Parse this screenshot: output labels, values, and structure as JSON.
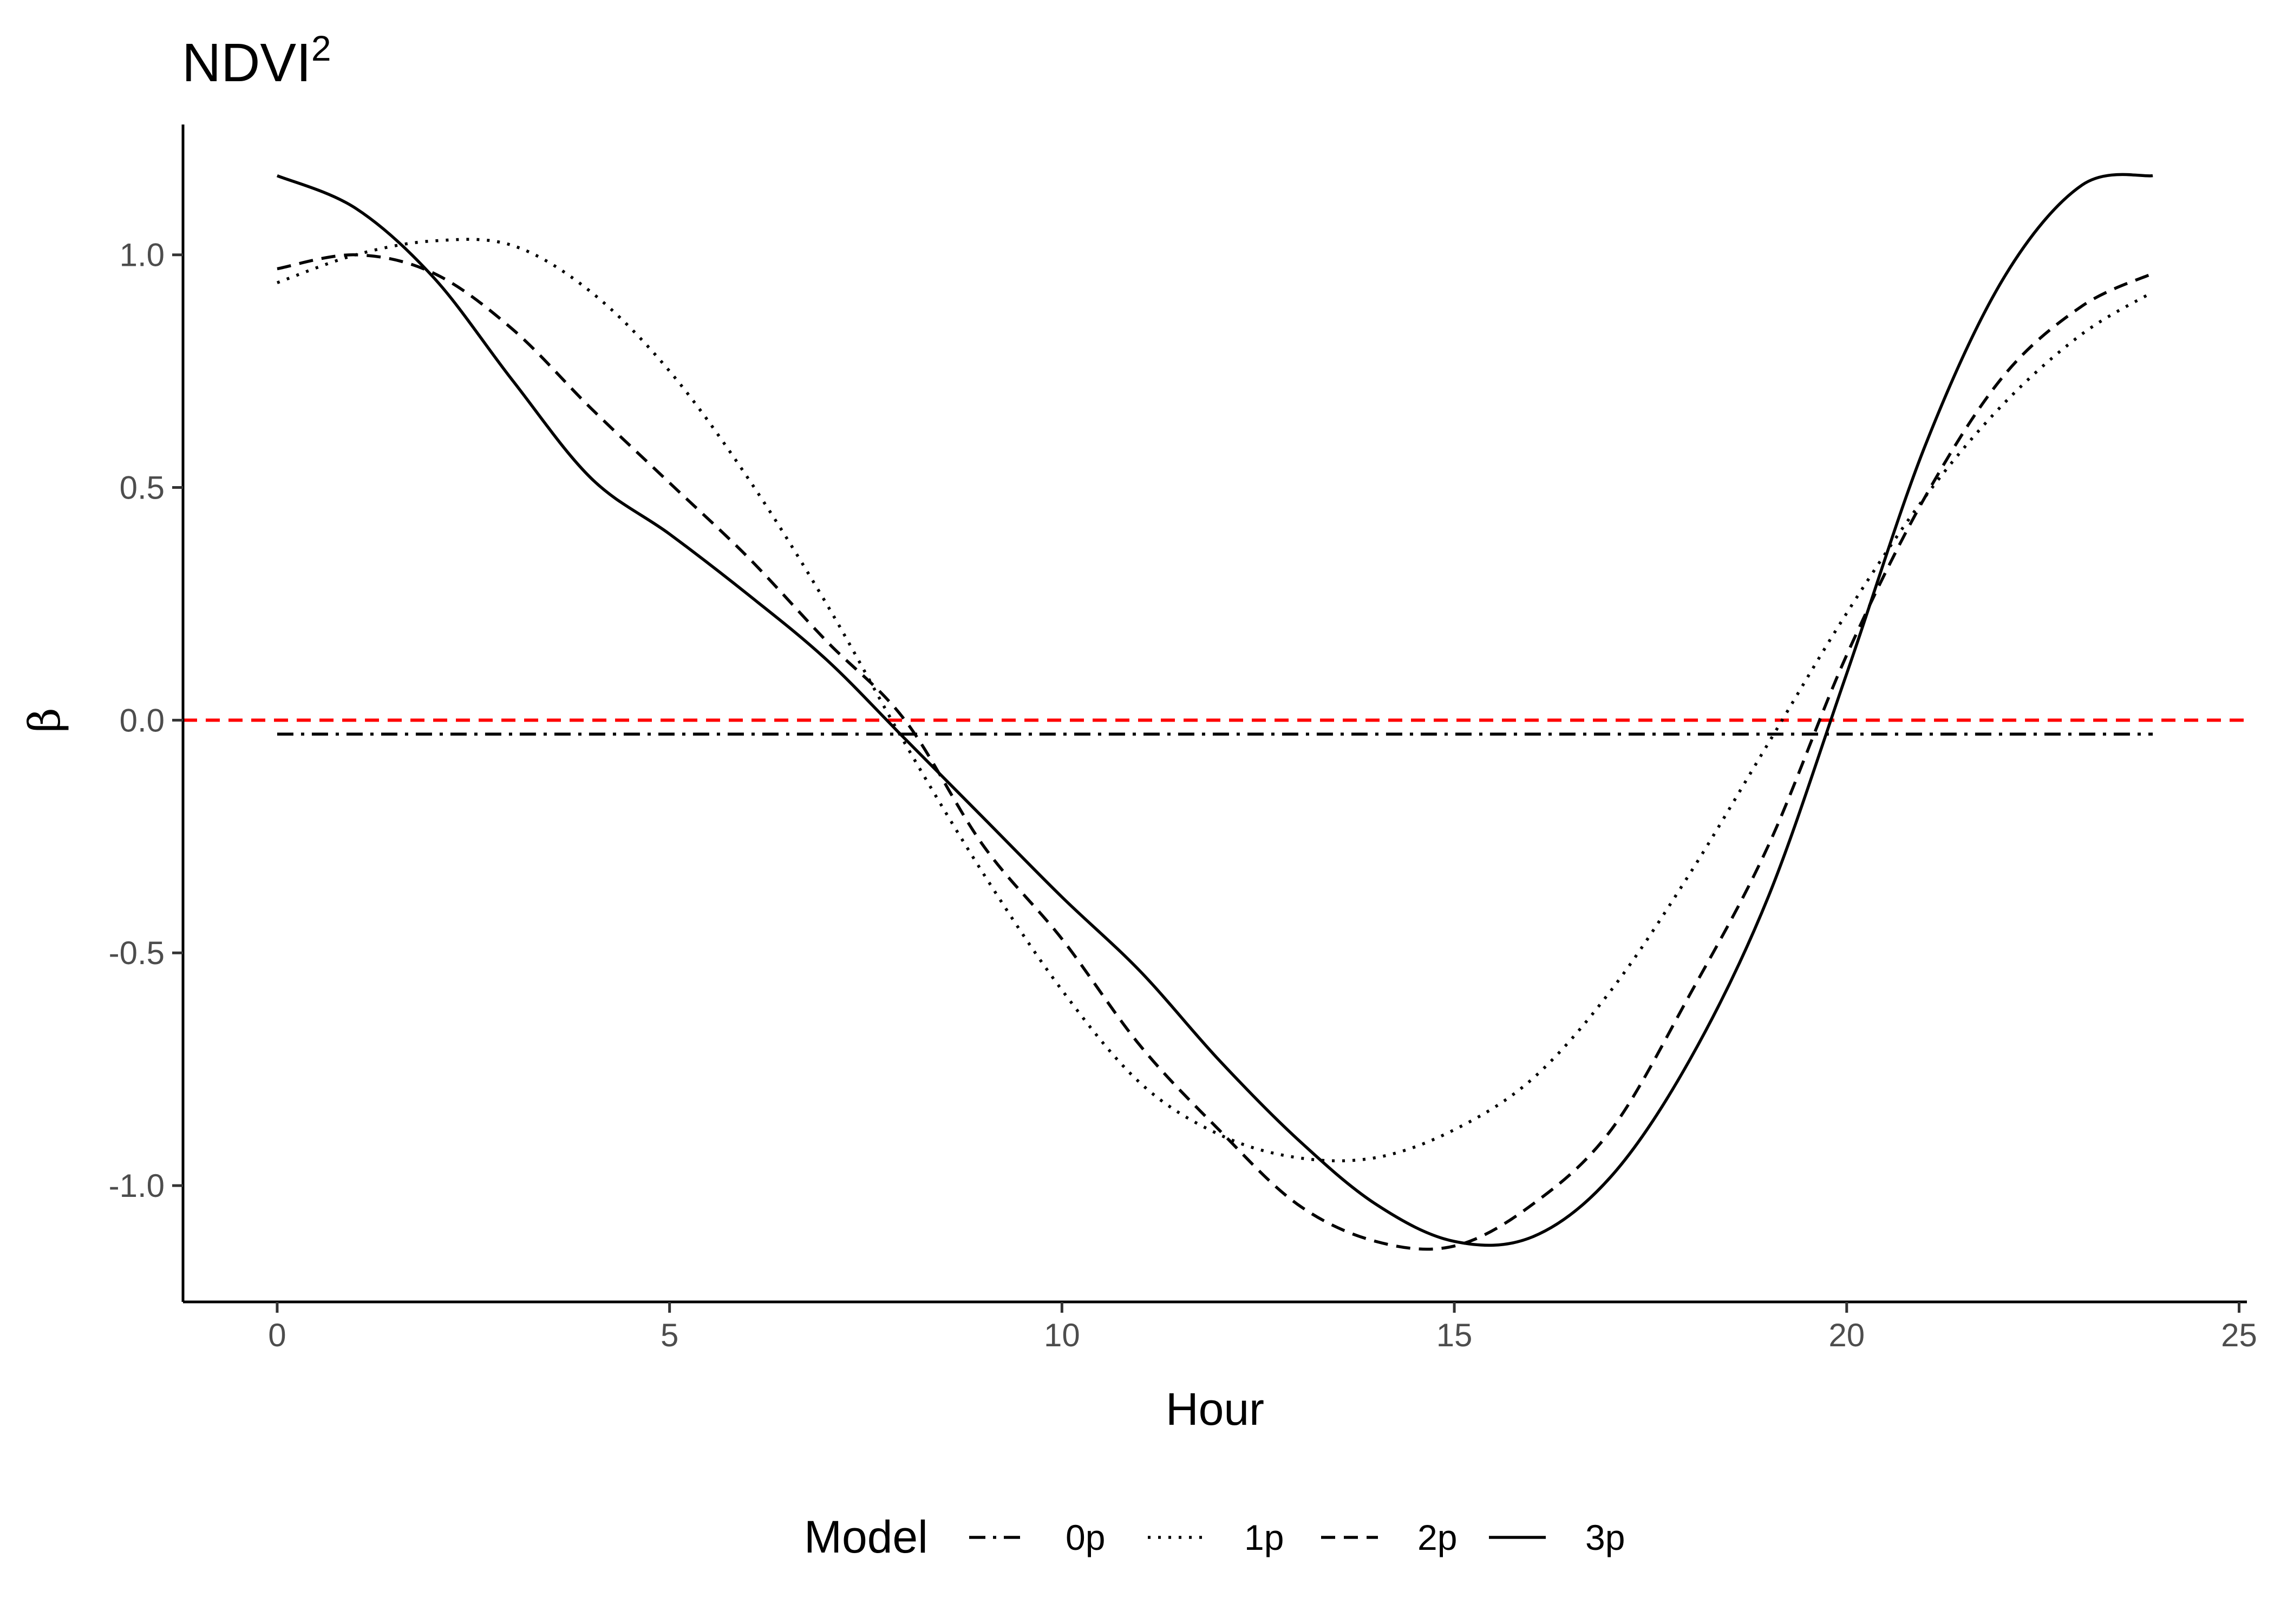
{
  "chart_data": {
    "type": "line",
    "title": "NDVI",
    "title_superscript": "2",
    "xlabel": "Hour",
    "ylabel": "β",
    "xlim": [
      -1.2,
      25.1
    ],
    "ylim": [
      -1.25,
      1.28
    ],
    "x_ticks": [
      0,
      5,
      10,
      15,
      20,
      25
    ],
    "y_ticks": [
      1.0,
      0.5,
      0.0,
      -0.5,
      -1.0
    ],
    "y_tick_labels": [
      "1.0",
      "0.5",
      "0.0",
      "-0.5",
      "-1.0"
    ],
    "grid": false,
    "legend": {
      "title": "Model",
      "position": "bottom"
    },
    "reference_line": {
      "y": 0,
      "color": "#ff0000",
      "style": "dashed"
    },
    "series": [
      {
        "name": "0p",
        "style": "dashdot",
        "x": [
          0,
          23.9
        ],
        "y": [
          -0.03,
          -0.03
        ]
      },
      {
        "name": "1p",
        "style": "dotted",
        "x": [
          0,
          1,
          2,
          3,
          4,
          5,
          6,
          7,
          8,
          9,
          10,
          11,
          12,
          13,
          14,
          15,
          16,
          17,
          18,
          19,
          20,
          21,
          22,
          23,
          23.9
        ],
        "y": [
          0.94,
          1.0,
          1.03,
          1.02,
          0.92,
          0.75,
          0.52,
          0.25,
          -0.05,
          -0.33,
          -0.58,
          -0.78,
          -0.89,
          -0.94,
          -0.94,
          -0.88,
          -0.77,
          -0.58,
          -0.33,
          -0.05,
          0.23,
          0.48,
          0.68,
          0.83,
          0.92
        ]
      },
      {
        "name": "2p",
        "style": "dashed",
        "x": [
          0,
          1,
          2,
          3,
          4,
          5,
          6,
          7,
          8,
          9,
          10,
          11,
          12,
          13,
          14,
          15,
          16,
          17,
          18,
          19,
          20,
          21,
          22,
          23,
          23.9
        ],
        "y": [
          0.97,
          1.0,
          0.96,
          0.84,
          0.67,
          0.51,
          0.35,
          0.17,
          0.0,
          -0.27,
          -0.47,
          -0.7,
          -0.88,
          -1.04,
          -1.12,
          -1.13,
          -1.04,
          -0.88,
          -0.59,
          -0.27,
          0.14,
          0.48,
          0.74,
          0.89,
          0.96
        ]
      },
      {
        "name": "3p",
        "style": "solid",
        "x": [
          0,
          1,
          2,
          3,
          4,
          5,
          6,
          7,
          8,
          9,
          10,
          11,
          12,
          13,
          14,
          15,
          16,
          17,
          18,
          19,
          20,
          21,
          22,
          23,
          23.9
        ],
        "y": [
          1.17,
          1.1,
          0.95,
          0.73,
          0.52,
          0.4,
          0.27,
          0.13,
          -0.04,
          -0.21,
          -0.38,
          -0.54,
          -0.73,
          -0.9,
          -1.04,
          -1.12,
          -1.11,
          -0.98,
          -0.73,
          -0.38,
          0.1,
          0.59,
          0.95,
          1.15,
          1.17
        ]
      }
    ]
  }
}
